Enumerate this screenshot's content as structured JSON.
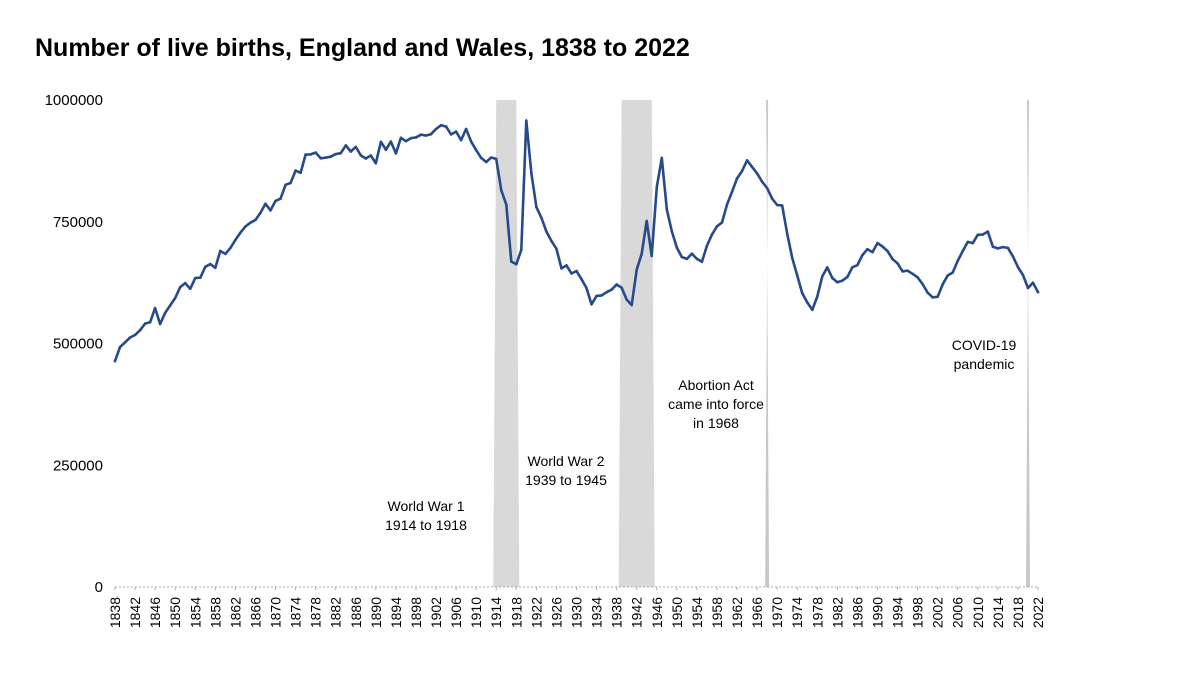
{
  "chart_data": {
    "type": "line",
    "title": "Number of live births, England and Wales, 1838 to 2022",
    "xlabel": "",
    "ylabel": "",
    "ylim": [
      0,
      1000000
    ],
    "xlim": [
      1838,
      2022
    ],
    "y_ticks": [
      "0",
      "250000",
      "500000",
      "750000",
      "1000000"
    ],
    "x_ticks": [
      "1838",
      "1842",
      "1846",
      "1850",
      "1854",
      "1858",
      "1862",
      "1866",
      "1870",
      "1874",
      "1878",
      "1882",
      "1886",
      "1890",
      "1894",
      "1898",
      "1902",
      "1906",
      "1910",
      "1914",
      "1918",
      "1922",
      "1926",
      "1930",
      "1934",
      "1938",
      "1942",
      "1946",
      "1950",
      "1954",
      "1958",
      "1962",
      "1966",
      "1970",
      "1974",
      "1978",
      "1982",
      "1986",
      "1990",
      "1994",
      "1998",
      "2002",
      "2006",
      "2010",
      "2014",
      "2018",
      "2022"
    ],
    "grid": false,
    "legend": "none",
    "series": [
      {
        "name": "",
        "color": "#264a8a",
        "x": [
          1838,
          1839,
          1840,
          1841,
          1842,
          1843,
          1844,
          1845,
          1846,
          1847,
          1848,
          1849,
          1850,
          1851,
          1852,
          1853,
          1854,
          1855,
          1856,
          1857,
          1858,
          1859,
          1860,
          1861,
          1862,
          1863,
          1864,
          1865,
          1866,
          1867,
          1868,
          1869,
          1870,
          1871,
          1872,
          1873,
          1874,
          1875,
          1876,
          1877,
          1878,
          1879,
          1880,
          1881,
          1882,
          1883,
          1884,
          1885,
          1886,
          1887,
          1888,
          1889,
          1890,
          1891,
          1892,
          1893,
          1894,
          1895,
          1896,
          1897,
          1898,
          1899,
          1900,
          1901,
          1902,
          1903,
          1904,
          1905,
          1906,
          1907,
          1908,
          1909,
          1910,
          1911,
          1912,
          1913,
          1914,
          1915,
          1916,
          1917,
          1918,
          1919,
          1920,
          1921,
          1922,
          1923,
          1924,
          1925,
          1926,
          1927,
          1928,
          1929,
          1930,
          1931,
          1932,
          1933,
          1934,
          1935,
          1936,
          1937,
          1938,
          1939,
          1940,
          1941,
          1942,
          1943,
          1944,
          1945,
          1946,
          1947,
          1948,
          1949,
          1950,
          1951,
          1952,
          1953,
          1954,
          1955,
          1956,
          1957,
          1958,
          1959,
          1960,
          1961,
          1962,
          1963,
          1964,
          1965,
          1966,
          1967,
          1968,
          1969,
          1970,
          1971,
          1972,
          1973,
          1974,
          1975,
          1976,
          1977,
          1978,
          1979,
          1980,
          1981,
          1982,
          1983,
          1984,
          1985,
          1986,
          1987,
          1988,
          1989,
          1990,
          1991,
          1992,
          1993,
          1994,
          1995,
          1996,
          1997,
          1998,
          1999,
          2000,
          2001,
          2002,
          2003,
          2004,
          2005,
          2006,
          2007,
          2008,
          2009,
          2010,
          2011,
          2012,
          2013,
          2014,
          2015,
          2016,
          2017,
          2018,
          2019,
          2020,
          2021,
          2022
        ],
        "values": [
          463787,
          492574,
          502303,
          512158,
          517739,
          527325,
          540763,
          543521,
          572625,
          539965,
          563059,
          578159,
          593422,
          615865,
          624012,
          612391,
          634405,
          635043,
          657453,
          663071,
          655481,
          689881,
          684048,
          696406,
          712684,
          727417,
          740275,
          748069,
          753870,
          768349,
          786858,
          773381,
          792787,
          797428,
          825907,
          829778,
          854956,
          850607,
          887968,
          888200,
          891906,
          880389,
          881643,
          883642,
          889014,
          890722,
          906750,
          894270,
          903760,
          886331,
          879868,
          885944,
          869937,
          914157,
          897957,
          914542,
          890289,
          922291,
          915331,
          921683,
          923265,
          928646,
          927062,
          929807,
          940509,
          948271,
          945389,
          929293,
          935081,
          917640,
          940383,
          914472,
          896962,
          881138,
          872737,
          881890,
          879096,
          814614,
          785520,
          668346,
          662661,
          692438,
          957782,
          848814,
          780124,
          758131,
          729933,
          710582,
          694563,
          654172,
          660267,
          643673,
          648811,
          632081,
          613972,
          580413,
          597642,
          598756,
          605292,
          610557,
          621204,
          614479,
          590120,
          579091,
          651503,
          684334,
          751478,
          679937,
          821371,
          881026,
          775306,
          730518,
          697097,
          677529,
          673735,
          684372,
          673651,
          667811,
          700335,
          723381,
          740715,
          748501,
          785005,
          811281,
          838736,
          854055,
          875972,
          862725,
          848989,
          832164,
          819272,
          797538,
          784486,
          783155,
          725440,
          675953,
          639885,
          603445,
          584270,
          569259,
          596418,
          638028,
          656234,
          634492,
          625931,
          629134,
          636818,
          656417,
          661018,
          681511,
          693577,
          687725,
          706140,
          699217,
          689656,
          673467,
          664726,
          648138,
          649485,
          643095,
          635901,
          621872,
          604441,
          594634,
          596122,
          621469,
          639721,
          645835,
          669601,
          690013,
          708711,
          706248,
          723165,
          723913,
          729674,
          698512,
          695233,
          697852,
          696271,
          679106,
          657076,
          640370,
          613936,
          624828,
          605479
        ]
      }
    ],
    "annotations": [
      {
        "x_start": 1914,
        "x_end": 1918,
        "lines": [
          "World War 1",
          "1914 to 1918"
        ],
        "shading": "#d9d9d9"
      },
      {
        "x_start": 1939,
        "x_end": 1945,
        "lines": [
          "World War 2",
          "1939 to 1945"
        ],
        "shading": "#d9d9d9"
      },
      {
        "x_start": 1968,
        "x_end": 1968,
        "lines": [
          "Abortion Act",
          "came into force",
          "in 1968"
        ],
        "shading": "#c8c8c8"
      },
      {
        "x_start": 2020,
        "x_end": 2020,
        "lines": [
          "COVID-19",
          "pandemic"
        ],
        "shading": "#c8c8c8"
      }
    ]
  }
}
